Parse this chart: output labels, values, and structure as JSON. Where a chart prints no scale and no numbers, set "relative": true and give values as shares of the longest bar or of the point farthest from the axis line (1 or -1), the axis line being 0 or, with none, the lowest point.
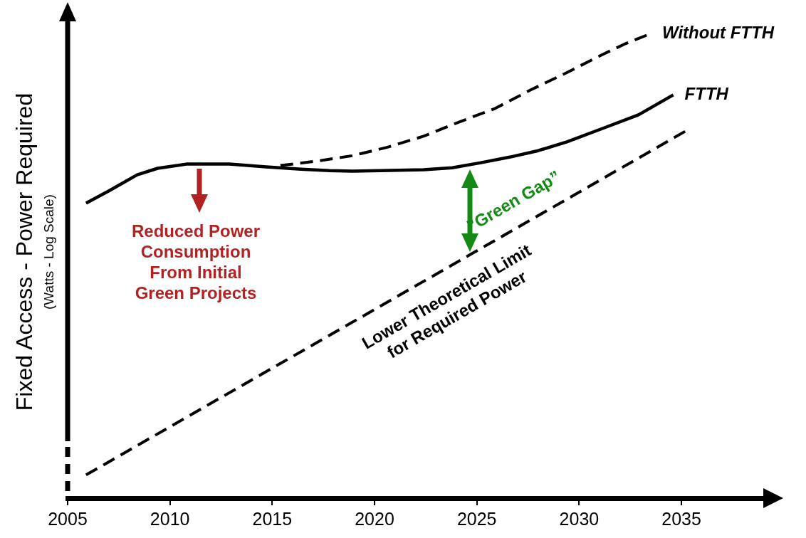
{
  "chart_data": {
    "type": "line",
    "relative": true,
    "ylabel": "Fixed Access - Power Required\n(Watts - Log Scale)",
    "xlim": [
      2005,
      2039
    ],
    "xticks": [
      2005,
      2010,
      2015,
      2020,
      2025,
      2030,
      2035
    ],
    "grid": false,
    "legend": false,
    "marker": "none",
    "series": [
      {
        "name": "Without FTTH",
        "color": "#000000",
        "line_style": "dashed",
        "x": [
          2015.4,
          2017.1,
          2018.9,
          2020.6,
          2022.4,
          2024.1,
          2025.9,
          2027.6,
          2029.4,
          2031.1,
          2032.2,
          2033.5
        ],
        "values": [
          0.716,
          0.725,
          0.737,
          0.755,
          0.779,
          0.809,
          0.839,
          0.878,
          0.916,
          0.954,
          0.977,
          1.0
        ]
      },
      {
        "name": "FTTH",
        "color": "#000000",
        "line_style": "solid",
        "x": [
          2005.9,
          2007.0,
          2008.4,
          2009.4,
          2010.8,
          2012.9,
          2014.7,
          2016.4,
          2017.8,
          2018.9,
          2020.3,
          2022.4,
          2023.8,
          2025.2,
          2026.6,
          2028.0,
          2029.4,
          2031.1,
          2032.9,
          2034.6
        ],
        "values": [
          0.635,
          0.661,
          0.696,
          0.71,
          0.719,
          0.719,
          0.713,
          0.708,
          0.705,
          0.704,
          0.705,
          0.707,
          0.711,
          0.722,
          0.734,
          0.748,
          0.767,
          0.795,
          0.825,
          0.868
        ]
      },
      {
        "color": "#000000",
        "line_style": "dashed",
        "x": [
          2005.9,
          2035.2
        ],
        "values": [
          0.05,
          0.79
        ]
      }
    ],
    "annotations": [
      "Reduced Power Consumption From Initial Green Projects",
      "”Green Gap”",
      {
        "text": "Lower Theoretical Limit for Required Power",
        "x": 2022.5,
        "y": 0.47
      }
    ]
  }
}
